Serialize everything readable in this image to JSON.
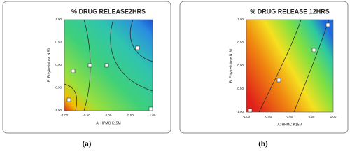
{
  "panels": [
    {
      "title": "% DRUG RELEASE2HRS",
      "x_label": "A: HPMC K15M",
      "y_label": "B: Ethylcellulose N 50",
      "xticks": [
        "-1.00",
        "-0.50",
        "0.00",
        "0.50",
        "1.00"
      ],
      "yticks": [
        "-1.00",
        "-0.50",
        "0.00",
        "0.50",
        "1.00"
      ],
      "caption": "(a)"
    },
    {
      "title": "% DRUG RELEASE 12HRS",
      "x_label": "A: HPMC K15M",
      "y_label": "B: Ethylcellulose N 50",
      "xticks": [
        "-1.00",
        "-0.50",
        "0.00",
        "0.50",
        "1.00"
      ],
      "yticks": [
        "-1.00",
        "-0.50",
        "0.00",
        "0.50",
        "1.00"
      ],
      "caption": "(b)"
    }
  ]
}
